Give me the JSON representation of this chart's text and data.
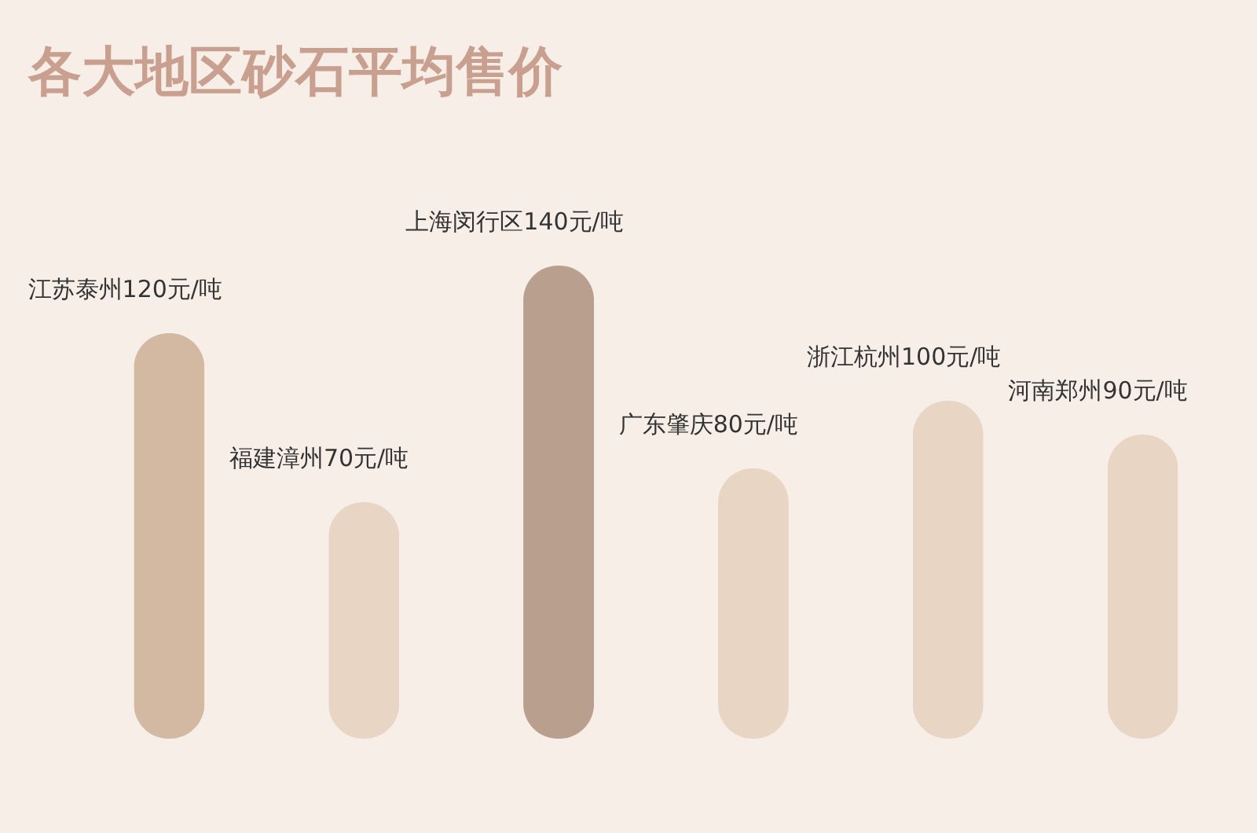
{
  "chart_data": {
    "type": "bar",
    "title": "各大地区砂石平均售价",
    "categories": [
      "江苏泰州",
      "福建漳州",
      "上海闵行区",
      "广东肇庆",
      "浙江杭州",
      "河南郑州"
    ],
    "values": [
      120,
      70,
      140,
      80,
      100,
      90
    ],
    "value_labels": [
      "120元/吨",
      "70元/吨",
      "140元/吨",
      "80元/吨",
      "100元/吨",
      "90元/吨"
    ],
    "colors": [
      "#d3b8a2",
      "#e8d5c4",
      "#b9a08e",
      "#e8d5c4",
      "#e8d5c4",
      "#e8d5c4"
    ]
  }
}
